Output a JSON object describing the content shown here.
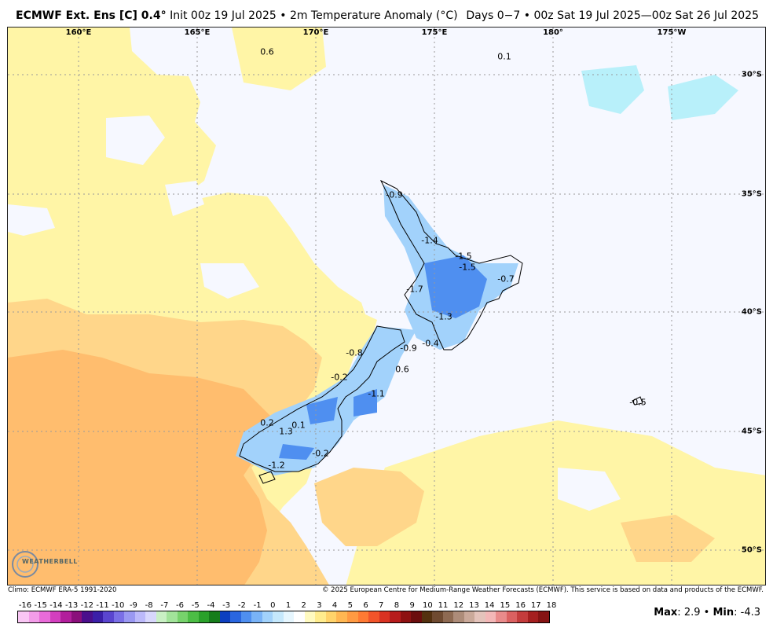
{
  "header": {
    "model": "ECMWF Ext. Ens [C] 0.4",
    "degree": "°",
    "init": "Init 00z 19 Jul 2025",
    "bullet": "•",
    "product": "2m Temperature Anomaly (°C)",
    "right": "Days 0−7 • 00z Sat 19 Jul 2025—00z Sat 26 Jul 2025"
  },
  "map": {
    "lon_labels": [
      "160°E",
      "165°E",
      "170°E",
      "175°E",
      "180°",
      "175°W"
    ],
    "lat_labels": [
      "30°S",
      "35°S",
      "40°S",
      "45°S",
      "50°S"
    ],
    "values": [
      "0.6",
      "0.1",
      "-0.9",
      "-1.4",
      "-1.5",
      "-1.5",
      "-0.7",
      "-1.7",
      "-1.3",
      "-0.8",
      "-0.9",
      "-0.4",
      "0.6",
      "-0.2",
      "-1.1",
      "0.2",
      "0.1",
      "1.3",
      "-0.2",
      "-1.2",
      "-0.5"
    ],
    "watermark": "WEATHERBELL"
  },
  "footer": {
    "climo": "Climo: ECMWF ERA-5 1991-2020",
    "copyright": "© 2025 European Centre for Medium-Range Weather Forecasts (ECMWF). This service is based on data and products of the ECMWF."
  },
  "scale": {
    "ticks": [
      "-16",
      "-15",
      "-14",
      "-13",
      "-12",
      "-11",
      "-10",
      "-9",
      "-8",
      "-7",
      "-6",
      "-5",
      "-4",
      "-3",
      "-2",
      "-1",
      "0",
      "1",
      "2",
      "3",
      "4",
      "5",
      "6",
      "7",
      "8",
      "9",
      "10",
      "11",
      "12",
      "13",
      "14",
      "15",
      "16",
      "17",
      "18"
    ],
    "colors": [
      "#f9c6f4",
      "#f39ce9",
      "#e96bd9",
      "#d33fbf",
      "#b21e9c",
      "#8a0f7b",
      "#4b0f8c",
      "#3b1fa8",
      "#5a45cf",
      "#7a6fe6",
      "#9a98f2",
      "#bcb9fa",
      "#d8d7fc",
      "#c9f0c4",
      "#a2e39a",
      "#77d26c",
      "#4cbd45",
      "#2aa12a",
      "#167d1b",
      "#0d3fc0",
      "#2a66e0",
      "#4f8ff0",
      "#79b3f7",
      "#a2d2fb",
      "#c5e8fc",
      "#e6f6fe",
      "#ffffff",
      "#fffac0",
      "#ffec8d",
      "#ffd36a",
      "#ffb752",
      "#ff9a42",
      "#ff7a33",
      "#f2542a",
      "#d93222",
      "#b71c1c",
      "#8e1111",
      "#6b0d0d",
      "#54310f",
      "#6f4a30",
      "#8e6a52",
      "#ad8c79",
      "#caa99a",
      "#e4c3bb",
      "#f3b7b7",
      "#e98b8b",
      "#db6161",
      "#c43c3c",
      "#a51f1f",
      "#851313"
    ],
    "max_label": "Max",
    "max_value": "2.9",
    "min_label": "Min",
    "min_value": "-4.3",
    "sep": "•"
  }
}
